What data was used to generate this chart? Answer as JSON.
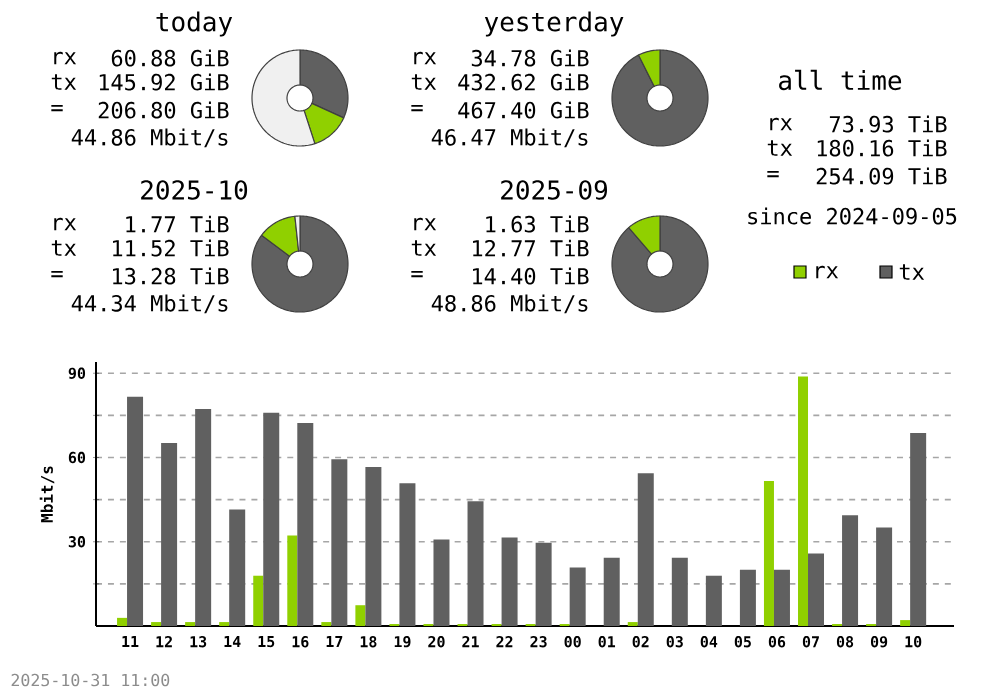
{
  "chart_data": [
    {
      "type": "donut",
      "title": "today",
      "categories": [
        null,
        null,
        null
      ],
      "values": [
        31.8,
        13.2,
        55.0
      ],
      "colors": [
        "#606060",
        "#90d000",
        "#f0f0f0"
      ],
      "annotations": [
        "rx",
        "60.88 GiB",
        "tx",
        "145.92 GiB",
        "=",
        "206.80 GiB",
        "44.86 Mbit/s"
      ]
    },
    {
      "type": "donut",
      "title": "yesterday",
      "categories": [
        null,
        null
      ],
      "values": [
        92.6,
        7.4
      ],
      "colors": [
        "#606060",
        "#90d000"
      ],
      "annotations": [
        "rx",
        "34.78 GiB",
        "tx",
        "432.62 GiB",
        "=",
        "467.40 GiB",
        "46.47 Mbit/s"
      ]
    },
    {
      "type": "other",
      "title": "all time",
      "annotations": [
        "rx",
        "73.93 TiB",
        "tx",
        "180.16 TiB",
        "=",
        "254.09 TiB",
        "since 2024-09-05"
      ]
    },
    {
      "type": "donut",
      "title": "2025-10",
      "categories": [
        null,
        null,
        null
      ],
      "values": [
        85.2,
        13.1,
        1.7
      ],
      "colors": [
        "#606060",
        "#90d000",
        "#f0f0f0"
      ],
      "annotations": [
        "rx",
        "1.77 TiB",
        "tx",
        "11.52 TiB",
        "=",
        "13.28 TiB",
        "44.34 Mbit/s"
      ]
    },
    {
      "type": "donut",
      "title": "2025-09",
      "categories": [
        null,
        null
      ],
      "values": [
        88.7,
        11.3
      ],
      "colors": [
        "#606060",
        "#90d000"
      ],
      "annotations": [
        "rx",
        "1.63 TiB",
        "tx",
        "12.77 TiB",
        "=",
        "14.40 TiB",
        "48.86 Mbit/s"
      ]
    },
    {
      "type": "bar",
      "ylabel": "Mbit/s",
      "categories": [
        "11",
        "12",
        "13",
        "14",
        "15",
        "16",
        "17",
        "18",
        "19",
        "20",
        "21",
        "22",
        "23",
        "00",
        "01",
        "02",
        "03",
        "04",
        "05",
        "06",
        "07",
        "08",
        "09",
        "10"
      ],
      "series": [
        {
          "name": "rx",
          "color": "#90d000",
          "values": [
            2.9,
            1.4,
            1.4,
            1.4,
            17.9,
            32.2,
            1.4,
            7.4,
            0.7,
            0.7,
            0.7,
            0.7,
            0.7,
            0.7,
            0,
            1.4,
            0,
            0,
            0,
            51.6,
            88.8,
            0.7,
            0.7,
            2.1
          ]
        },
        {
          "name": "tx",
          "color": "#606060",
          "values": [
            81.6,
            65.2,
            77.3,
            41.5,
            75.9,
            72.3,
            59.4,
            56.6,
            50.8,
            30.8,
            44.4,
            31.5,
            29.6,
            20.8,
            24.3,
            54.4,
            24.3,
            17.9,
            20.0,
            20.0,
            25.8,
            39.4,
            35.1,
            68.7
          ]
        }
      ],
      "ylim": [
        0,
        94
      ],
      "yticks": [
        {
          "value": 15,
          "label": null
        },
        30,
        {
          "value": 45,
          "label": null
        },
        60,
        {
          "value": 75,
          "label": null
        },
        90
      ],
      "grid": "y",
      "legend": "top right",
      "annotations": [
        "2025-10-31 11:00"
      ]
    }
  ]
}
